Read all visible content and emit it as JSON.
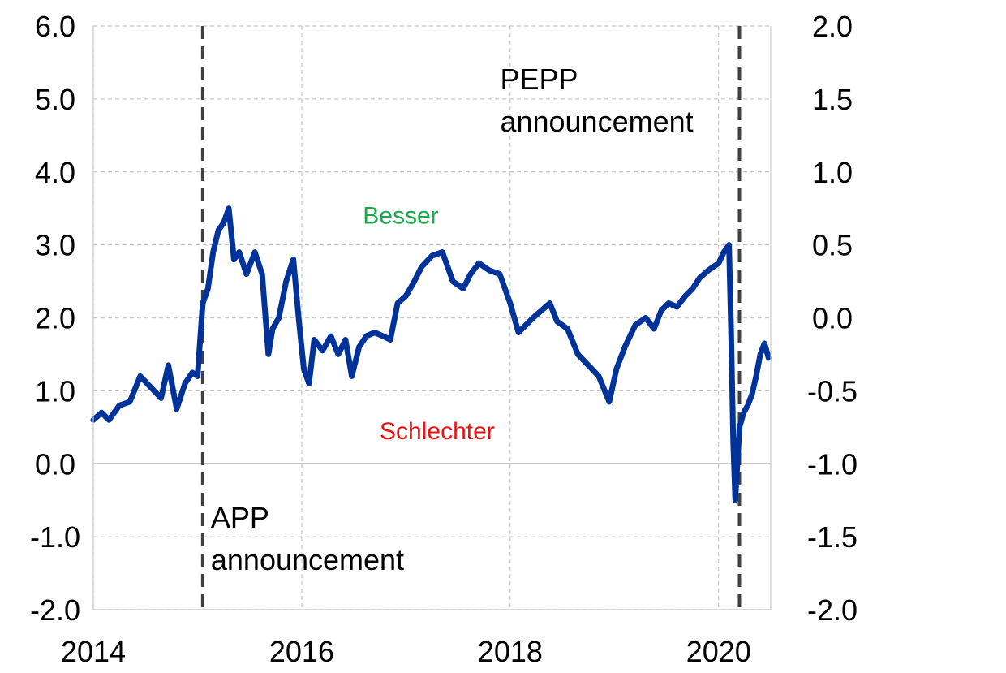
{
  "chart_data": {
    "type": "line",
    "title": "",
    "xlabel": "",
    "ylabel": "",
    "xlim": [
      2014.0,
      2020.5
    ],
    "ylim_left": [
      -2.0,
      6.0
    ],
    "ylim_right": [
      -2.0,
      2.0
    ],
    "x_ticks": [
      {
        "value": 2014,
        "label": "2014"
      },
      {
        "value": 2016,
        "label": "2016"
      },
      {
        "value": 2018,
        "label": "2018"
      },
      {
        "value": 2020,
        "label": "2020"
      }
    ],
    "y_ticks_left": [
      {
        "value": 6.0,
        "label": "6.0"
      },
      {
        "value": 5.0,
        "label": "5.0"
      },
      {
        "value": 4.0,
        "label": "4.0"
      },
      {
        "value": 3.0,
        "label": "3.0"
      },
      {
        "value": 2.0,
        "label": "2.0"
      },
      {
        "value": 1.0,
        "label": "1.0"
      },
      {
        "value": 0.0,
        "label": "0.0"
      },
      {
        "value": -1.0,
        "label": "-1.0"
      },
      {
        "value": -2.0,
        "label": "-2.0"
      }
    ],
    "y_ticks_right": [
      {
        "value": 2.0,
        "label": "2.0"
      },
      {
        "value": 1.5,
        "label": "1.5"
      },
      {
        "value": 1.0,
        "label": "1.0"
      },
      {
        "value": 0.5,
        "label": "0.5"
      },
      {
        "value": 0.0,
        "label": "0.0"
      },
      {
        "value": -0.5,
        "label": "-0.5"
      },
      {
        "value": -1.0,
        "label": "-1.0"
      },
      {
        "value": -1.5,
        "label": "-1.5"
      },
      {
        "value": -2.0,
        "label": "-2.0"
      }
    ],
    "grid": true,
    "zero_line": 0.0,
    "series": [
      {
        "color": "#003399",
        "x": [
          2014.0,
          2014.08,
          2014.15,
          2014.25,
          2014.35,
          2014.45,
          2014.55,
          2014.65,
          2014.72,
          2014.8,
          2014.88,
          2014.95,
          2015.0,
          2015.05,
          2015.1,
          2015.15,
          2015.2,
          2015.25,
          2015.3,
          2015.35,
          2015.4,
          2015.47,
          2015.55,
          2015.62,
          2015.68,
          2015.72,
          2015.78,
          2015.85,
          2015.92,
          2015.97,
          2016.02,
          2016.07,
          2016.12,
          2016.2,
          2016.28,
          2016.35,
          2016.42,
          2016.48,
          2016.55,
          2016.62,
          2016.7,
          2016.78,
          2016.85,
          2016.92,
          2017.0,
          2017.08,
          2017.15,
          2017.25,
          2017.35,
          2017.45,
          2017.55,
          2017.62,
          2017.7,
          2017.8,
          2017.9,
          2018.0,
          2018.08,
          2018.15,
          2018.22,
          2018.3,
          2018.38,
          2018.45,
          2018.55,
          2018.65,
          2018.75,
          2018.85,
          2018.95,
          2019.02,
          2019.1,
          2019.2,
          2019.3,
          2019.38,
          2019.45,
          2019.52,
          2019.6,
          2019.68,
          2019.75,
          2019.82,
          2019.9,
          2020.0,
          2020.05,
          2020.1,
          2020.12,
          2020.14,
          2020.16,
          2020.18,
          2020.2,
          2020.24,
          2020.28,
          2020.32,
          2020.36,
          2020.4,
          2020.44,
          2020.48
        ],
        "values": [
          0.6,
          0.7,
          0.6,
          0.8,
          0.85,
          1.2,
          1.05,
          0.9,
          1.35,
          0.75,
          1.1,
          1.25,
          1.2,
          2.2,
          2.4,
          2.9,
          3.2,
          3.3,
          3.5,
          2.8,
          2.9,
          2.6,
          2.9,
          2.6,
          1.5,
          1.85,
          2.0,
          2.5,
          2.8,
          2.0,
          1.3,
          1.1,
          1.7,
          1.55,
          1.75,
          1.5,
          1.7,
          1.2,
          1.6,
          1.75,
          1.8,
          1.75,
          1.7,
          2.2,
          2.3,
          2.5,
          2.7,
          2.85,
          2.9,
          2.5,
          2.4,
          2.6,
          2.75,
          2.65,
          2.6,
          2.2,
          1.8,
          1.9,
          2.0,
          2.1,
          2.2,
          1.95,
          1.85,
          1.5,
          1.35,
          1.2,
          0.85,
          1.3,
          1.6,
          1.9,
          2.0,
          1.85,
          2.1,
          2.2,
          2.15,
          2.3,
          2.4,
          2.55,
          2.65,
          2.75,
          2.9,
          3.0,
          1.8,
          0.3,
          -0.5,
          0.0,
          0.5,
          0.7,
          0.8,
          0.95,
          1.2,
          1.5,
          1.65,
          1.45
        ]
      }
    ],
    "vlines": [
      {
        "x": 2015.05,
        "label_lines": [
          "APP",
          "announcement"
        ],
        "label_pos": "bottom-right"
      },
      {
        "x": 2020.2,
        "label_lines": [
          "PEPP",
          "announcement"
        ],
        "label_pos": "top-left"
      }
    ],
    "region_labels": {
      "good": {
        "text": "Besser",
        "color": "#1aaa4a",
        "x": 2016.95,
        "y": 3.4
      },
      "bad": {
        "text": "Schlechter",
        "color": "#ee1111",
        "x": 2017.3,
        "y": 0.45
      }
    }
  }
}
